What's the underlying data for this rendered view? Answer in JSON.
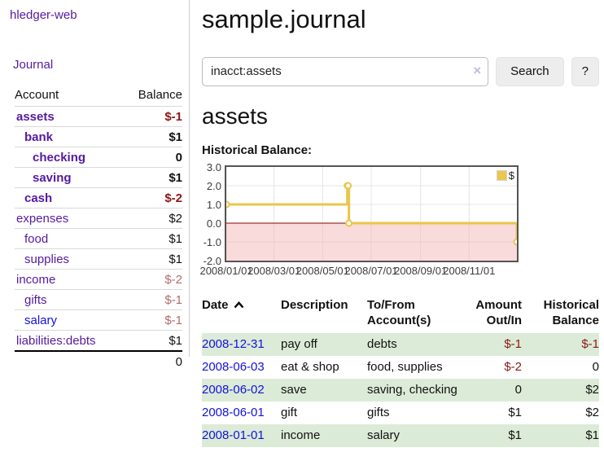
{
  "sidebar": {
    "brand": "hledger-web",
    "journal_link": "Journal",
    "accounts_header": {
      "account": "Account",
      "balance": "Balance"
    },
    "accounts": [
      {
        "name": "assets",
        "balance": "$-1",
        "level": 1,
        "bold": true,
        "neg": "strong"
      },
      {
        "name": "bank",
        "balance": "$1",
        "level": 2,
        "bold": true,
        "neg": "none"
      },
      {
        "name": "checking",
        "balance": "0",
        "level": 3,
        "bold": true,
        "neg": "none"
      },
      {
        "name": "saving",
        "balance": "$1",
        "level": 3,
        "bold": true,
        "neg": "none"
      },
      {
        "name": "cash",
        "balance": "$-2",
        "level": 2,
        "bold": true,
        "neg": "strong"
      },
      {
        "name": "expenses",
        "balance": "$2",
        "level": 1,
        "bold": false,
        "neg": "none"
      },
      {
        "name": "food",
        "balance": "$1",
        "level": 2,
        "bold": false,
        "neg": "none"
      },
      {
        "name": "supplies",
        "balance": "$1",
        "level": 2,
        "bold": false,
        "neg": "none"
      },
      {
        "name": "income",
        "balance": "$-2",
        "level": 1,
        "bold": false,
        "neg": "soft"
      },
      {
        "name": "gifts",
        "balance": "$-1",
        "level": 2,
        "bold": false,
        "neg": "soft"
      },
      {
        "name": "salary",
        "balance": "$-1",
        "level": 2,
        "bold": false,
        "neg": "soft",
        "link_color": "blue"
      },
      {
        "name": "liabilities:debts",
        "balance": "$1",
        "level": 1,
        "bold": false,
        "neg": "none"
      }
    ],
    "total": "0"
  },
  "header": {
    "title": "sample.journal"
  },
  "search": {
    "value": "inacct:assets",
    "clear_icon": "×",
    "button": "Search",
    "help_button": "?"
  },
  "account_page": {
    "heading": "assets",
    "chart_label": "Historical Balance:"
  },
  "chart_data": {
    "type": "line",
    "title": "Historical Balance",
    "legend": "$",
    "step": true,
    "series": [
      {
        "name": "$",
        "points": [
          [
            "2008-01-01",
            1
          ],
          [
            "2008-06-01",
            2
          ],
          [
            "2008-06-02",
            2
          ],
          [
            "2008-06-03",
            0
          ],
          [
            "2008-12-31",
            -1
          ]
        ]
      }
    ],
    "x_start": "2008-01-01",
    "ylim": [
      -2.0,
      3.0
    ],
    "yticks": [
      3.0,
      2.0,
      1.0,
      0.0,
      -1.0,
      -2.0
    ],
    "xticks": [
      "2008/01/01",
      "2008/03/01",
      "2008/05/01",
      "2008/07/01",
      "2008/09/01",
      "2008/11/01"
    ],
    "grid": true,
    "legend_position": "top-right",
    "line_color": "#e9c64a",
    "negative_region_fill": "#f3b8b8",
    "zero_line_color": "#8b0000"
  },
  "transactions": {
    "columns": [
      "Date",
      "Description",
      "To/From Account(s)",
      "Amount Out/In",
      "Historical Balance"
    ],
    "rows": [
      {
        "date": "2008-12-31",
        "description": "pay off",
        "accounts": "debts",
        "amount": "$-1",
        "balance": "$-1"
      },
      {
        "date": "2008-06-03",
        "description": "eat & shop",
        "accounts": "food, supplies",
        "amount": "$-2",
        "balance": "0"
      },
      {
        "date": "2008-06-02",
        "description": "save",
        "accounts": "saving, checking",
        "amount": "0",
        "balance": "$2"
      },
      {
        "date": "2008-06-01",
        "description": "gift",
        "accounts": "gifts",
        "amount": "$1",
        "balance": "$2"
      },
      {
        "date": "2008-01-01",
        "description": "income",
        "accounts": "salary",
        "amount": "$1",
        "balance": "$1"
      }
    ]
  },
  "colors": {
    "accent_purple": "#551a9e",
    "link_blue": "#1212dd",
    "negative_strong": "#8b1717",
    "negative_soft": "#b26b6b",
    "row_stripe_green": "#dcebd7",
    "chart_line_gold": "#e9c64a",
    "chart_negative_fill": "#f3b8b8",
    "chart_zero_line": "#8b0000",
    "button_bg": "#ededed"
  }
}
